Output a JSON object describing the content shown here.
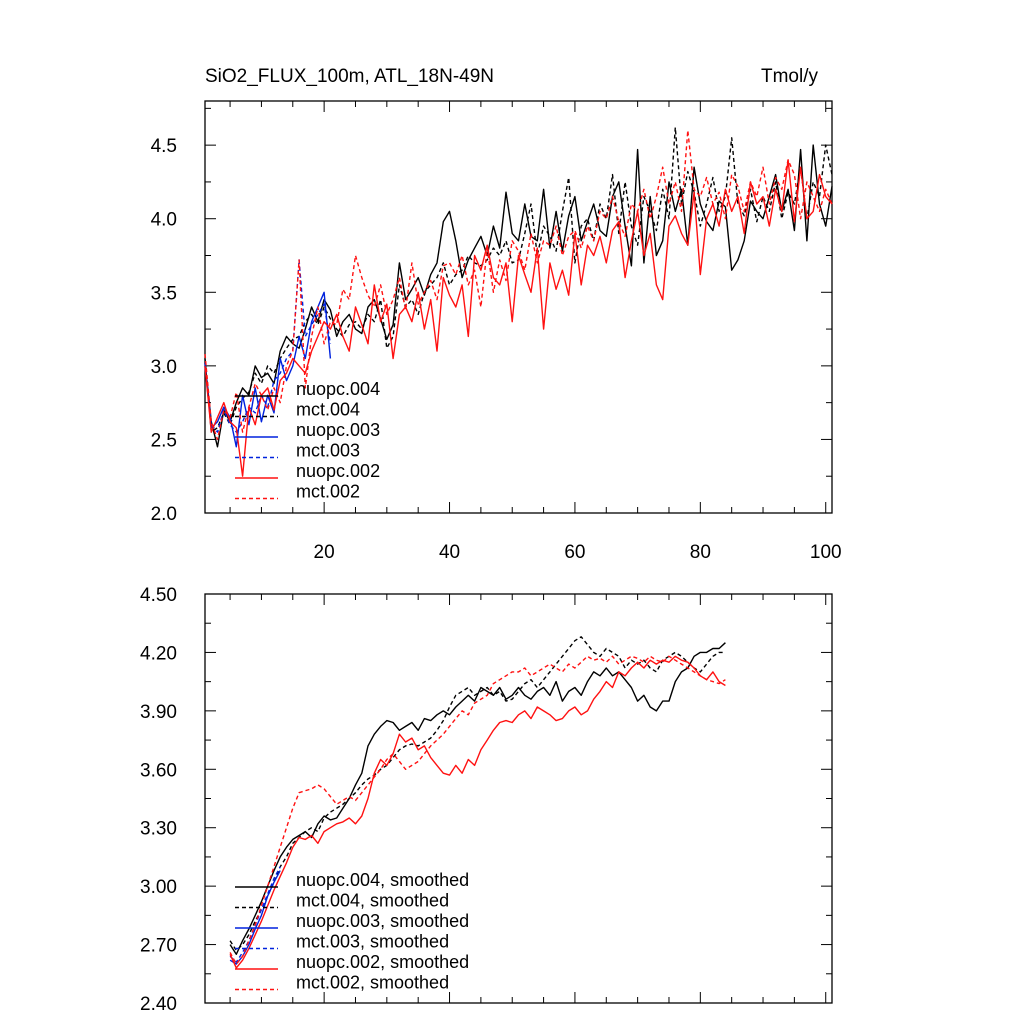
{
  "chart_data": [
    {
      "type": "line",
      "title": "SiO2_FLUX_100m, ATL_18N-49N",
      "units": "Tmol/y",
      "xlabel": "",
      "ylabel": "",
      "xlim": [
        1,
        101
      ],
      "ylim": [
        2.0,
        4.8
      ],
      "xticks": [
        20,
        40,
        60,
        80,
        100
      ],
      "yticks": [
        2.0,
        2.5,
        3.0,
        3.5,
        4.0,
        4.5
      ],
      "ytick_labels": [
        "2.0",
        "2.5",
        "3.0",
        "3.5",
        "4.0",
        "4.5"
      ],
      "legend": "bottom-left",
      "series": [
        {
          "name": "nuopc.004",
          "color": "#000000",
          "dash": "solid",
          "x_start": 1,
          "values": [
            3.02,
            2.62,
            2.45,
            2.7,
            2.62,
            2.75,
            2.85,
            2.8,
            3.0,
            2.92,
            2.95,
            2.88,
            3.1,
            3.2,
            3.15,
            3.12,
            3.25,
            3.4,
            3.3,
            3.45,
            3.38,
            3.2,
            3.3,
            3.35,
            3.25,
            3.22,
            3.4,
            3.45,
            3.32,
            3.18,
            3.28,
            3.7,
            3.45,
            3.52,
            3.6,
            3.48,
            3.62,
            3.7,
            3.98,
            4.05,
            3.85,
            3.6,
            3.72,
            3.8,
            3.88,
            3.75,
            3.95,
            3.8,
            4.18,
            3.9,
            3.85,
            4.1,
            3.88,
            3.85,
            4.2,
            3.8,
            4.05,
            3.78,
            4.02,
            4.15,
            3.85,
            3.98,
            4.1,
            3.92,
            3.88,
            4.15,
            4.25,
            3.95,
            3.68,
            4.47,
            3.7,
            4.15,
            3.75,
            3.85,
            4.25,
            4.05,
            4.2,
            3.82,
            4.35,
            4.1,
            3.98,
            3.92,
            4.12,
            4.08,
            3.65,
            3.72,
            3.85,
            4.12,
            4.05,
            4.0,
            4.15,
            4.3,
            4.05,
            4.2,
            3.92,
            4.47,
            3.85,
            4.5,
            4.1,
            3.95,
            4.22
          ]
        },
        {
          "name": "mct.004",
          "color": "#000000",
          "dash": "dash",
          "x_start": 1,
          "values": [
            3.05,
            2.55,
            2.58,
            2.68,
            2.6,
            2.72,
            2.78,
            2.82,
            2.95,
            2.88,
            3.0,
            2.95,
            3.05,
            3.12,
            3.18,
            3.2,
            3.3,
            3.35,
            3.28,
            3.4,
            3.32,
            3.25,
            3.2,
            3.28,
            3.3,
            3.25,
            3.35,
            3.3,
            3.45,
            3.12,
            3.2,
            3.55,
            3.4,
            3.45,
            3.35,
            3.5,
            3.55,
            3.6,
            3.7,
            3.55,
            3.62,
            3.65,
            3.75,
            3.7,
            3.68,
            3.72,
            3.8,
            3.75,
            3.85,
            3.7,
            3.72,
            3.9,
            4.1,
            3.75,
            3.95,
            3.88,
            3.78,
            4.05,
            4.28,
            3.7,
            3.95,
            4.0,
            3.85,
            4.1,
            4.0,
            4.3,
            3.9,
            4.25,
            3.95,
            3.82,
            4.15,
            4.05,
            3.92,
            4.2,
            4.0,
            4.62,
            4.1,
            4.32,
            4.18,
            3.95,
            4.1,
            4.28,
            4.05,
            4.15,
            4.55,
            4.1,
            4.02,
            4.2,
            3.98,
            4.15,
            4.05,
            4.25,
            4.0,
            4.18,
            4.1,
            4.35,
            4.0,
            4.25,
            4.15,
            4.5,
            4.3
          ]
        },
        {
          "name": "nuopc.003",
          "color": "#0022dd",
          "dash": "solid",
          "x_start": 1,
          "values": [
            3.0,
            2.58,
            2.62,
            2.72,
            2.65,
            2.45,
            2.8,
            2.6,
            2.85,
            2.62,
            2.8,
            2.68,
            3.05,
            2.9,
            3.0,
            3.2,
            3.05,
            3.3,
            3.4,
            3.5,
            3.05
          ]
        },
        {
          "name": "mct.003",
          "color": "#0022dd",
          "dash": "dash",
          "x_start": 1,
          "values": [
            3.02,
            2.6,
            2.55,
            2.7,
            2.6,
            2.55,
            2.62,
            2.72,
            2.68,
            2.8,
            2.72,
            2.9,
            2.95,
            3.05,
            3.1,
            3.72,
            3.2,
            3.28,
            3.35,
            3.42,
            3.15
          ]
        },
        {
          "name": "nuopc.002",
          "color": "#ff1111",
          "dash": "solid",
          "x_start": 1,
          "values": [
            3.0,
            2.55,
            2.65,
            2.75,
            2.62,
            2.58,
            2.25,
            2.72,
            2.6,
            2.8,
            2.85,
            2.7,
            2.9,
            2.95,
            3.05,
            3.0,
            2.95,
            3.1,
            3.2,
            3.3,
            3.25,
            3.35,
            3.2,
            3.1,
            3.4,
            3.28,
            3.15,
            3.55,
            3.3,
            3.42,
            3.05,
            3.35,
            3.4,
            3.3,
            3.5,
            3.25,
            3.45,
            3.1,
            3.6,
            3.48,
            3.4,
            3.55,
            3.2,
            3.75,
            3.65,
            3.82,
            3.6,
            3.55,
            3.7,
            3.3,
            3.75,
            3.62,
            3.5,
            3.8,
            3.25,
            3.7,
            3.52,
            3.65,
            3.48,
            3.9,
            3.55,
            3.82,
            3.75,
            3.88,
            3.7,
            3.92,
            3.98,
            3.6,
            3.85,
            4.05,
            3.75,
            3.9,
            3.55,
            3.45,
            3.95,
            4.02,
            3.9,
            3.82,
            4.18,
            3.62,
            4.0,
            4.1,
            3.95,
            4.2,
            4.05,
            4.15,
            3.9,
            4.25,
            4.1,
            4.15,
            3.95,
            4.2,
            4.05,
            4.4,
            3.98,
            4.35,
            4.0,
            4.05,
            4.3,
            4.15,
            4.1
          ]
        },
        {
          "name": "mct.002",
          "color": "#ff1111",
          "dash": "dash",
          "x_start": 1,
          "values": [
            3.08,
            2.62,
            2.5,
            2.7,
            2.65,
            2.82,
            2.55,
            2.72,
            2.88,
            2.8,
            2.7,
            2.85,
            2.75,
            3.0,
            3.1,
            3.72,
            2.85,
            3.2,
            3.4,
            3.15,
            3.3,
            3.28,
            3.52,
            3.45,
            3.75,
            3.6,
            3.48,
            3.4,
            3.55,
            3.35,
            3.45,
            3.6,
            3.38,
            3.7,
            3.42,
            3.5,
            3.58,
            3.45,
            3.68,
            3.7,
            3.62,
            3.75,
            3.55,
            3.65,
            3.4,
            3.8,
            3.5,
            3.72,
            3.58,
            3.85,
            3.78,
            3.65,
            3.9,
            3.7,
            3.85,
            3.82,
            3.95,
            3.75,
            3.88,
            3.92,
            3.8,
            3.95,
            3.85,
            4.05,
            4.0,
            4.15,
            3.98,
            3.88,
            4.1,
            4.05,
            4.2,
            4.0,
            4.15,
            4.35,
            4.1,
            4.25,
            4.05,
            4.6,
            4.2,
            4.15,
            4.28,
            4.1,
            4.18,
            4.0,
            4.3,
            4.22,
            4.05,
            4.25,
            4.15,
            4.35,
            4.1,
            4.28,
            4.2,
            4.4,
            4.3,
            4.0,
            4.25,
            4.15,
            4.05,
            4.2,
            4.1
          ]
        }
      ]
    },
    {
      "type": "line",
      "title": "",
      "xlabel": "",
      "ylabel": "",
      "xlim": [
        1,
        101
      ],
      "ylim": [
        2.4,
        4.5
      ],
      "xticks": [
        20,
        40,
        60,
        80,
        100
      ],
      "show_xtick_labels": false,
      "yticks": [
        2.4,
        2.7,
        3.0,
        3.3,
        3.6,
        3.9,
        4.2,
        4.5
      ],
      "ytick_labels": [
        "2.40",
        "2.70",
        "3.00",
        "3.30",
        "3.60",
        "3.90",
        "4.20",
        "4.50"
      ],
      "legend": "bottom-left",
      "series": [
        {
          "name": "nuopc.004, smoothed",
          "color": "#000000",
          "dash": "solid",
          "x_start": 5,
          "values": [
            2.7,
            2.65,
            2.72,
            2.78,
            2.85,
            2.92,
            3.0,
            3.08,
            3.15,
            3.2,
            3.24,
            3.26,
            3.28,
            3.25,
            3.32,
            3.36,
            3.34,
            3.35,
            3.4,
            3.45,
            3.52,
            3.58,
            3.72,
            3.78,
            3.82,
            3.85,
            3.84,
            3.8,
            3.82,
            3.84,
            3.8,
            3.86,
            3.85,
            3.88,
            3.9,
            3.88,
            3.92,
            3.95,
            3.98,
            3.95,
            4.02,
            4.0,
            3.98,
            4.02,
            3.96,
            3.98,
            4.02,
            3.98,
            3.96,
            4.0,
            4.02,
            3.98,
            4.05,
            3.95,
            4.0,
            4.02,
            3.98,
            4.05,
            4.1,
            4.08,
            4.12,
            4.08,
            4.1,
            4.06,
            4.02,
            3.95,
            3.98,
            3.92,
            3.9,
            3.95,
            3.95,
            4.05,
            4.1,
            4.12,
            4.18,
            4.2,
            4.2,
            4.22,
            4.22,
            4.25
          ]
        },
        {
          "name": "mct.004, smoothed",
          "color": "#000000",
          "dash": "dash",
          "x_start": 5,
          "values": [
            2.72,
            2.67,
            2.7,
            2.75,
            2.82,
            2.88,
            2.95,
            3.02,
            3.1,
            3.15,
            3.22,
            3.25,
            3.28,
            3.3,
            3.28,
            3.35,
            3.38,
            3.4,
            3.42,
            3.45,
            3.48,
            3.52,
            3.55,
            3.57,
            3.6,
            3.62,
            3.66,
            3.7,
            3.72,
            3.73,
            3.72,
            3.74,
            3.76,
            3.8,
            3.85,
            3.92,
            3.98,
            4.0,
            4.02,
            3.98,
            4.0,
            4.02,
            3.98,
            4.0,
            3.95,
            3.96,
            4.0,
            4.04,
            4.06,
            4.02,
            4.06,
            4.1,
            4.14,
            4.18,
            4.22,
            4.26,
            4.28,
            4.24,
            4.2,
            4.18,
            4.22,
            4.2,
            4.18,
            4.12,
            4.16,
            4.14,
            4.16,
            4.12,
            4.1,
            4.16,
            4.18,
            4.2,
            4.18,
            4.15,
            4.12,
            4.1,
            4.14,
            4.18,
            4.2,
            4.2
          ]
        },
        {
          "name": "nuopc.003, smoothed",
          "color": "#0022dd",
          "dash": "solid",
          "x_start": 5,
          "values": [
            2.62,
            2.6,
            2.64,
            2.7,
            2.78,
            2.85,
            2.95,
            3.02,
            3.08
          ]
        },
        {
          "name": "mct.003, smoothed",
          "color": "#0022dd",
          "dash": "dash",
          "x_start": 5,
          "values": [
            2.64,
            2.61,
            2.66,
            2.72,
            2.8,
            2.88,
            2.96,
            3.04,
            3.1
          ]
        },
        {
          "name": "nuopc.002, smoothed",
          "color": "#ff1111",
          "dash": "solid",
          "x_start": 5,
          "values": [
            2.65,
            2.58,
            2.62,
            2.68,
            2.75,
            2.82,
            2.9,
            2.98,
            3.05,
            3.12,
            3.2,
            3.25,
            3.24,
            3.26,
            3.22,
            3.28,
            3.3,
            3.32,
            3.33,
            3.35,
            3.32,
            3.36,
            3.45,
            3.58,
            3.65,
            3.62,
            3.68,
            3.78,
            3.74,
            3.76,
            3.7,
            3.72,
            3.66,
            3.62,
            3.58,
            3.57,
            3.62,
            3.58,
            3.65,
            3.62,
            3.7,
            3.75,
            3.8,
            3.84,
            3.85,
            3.84,
            3.88,
            3.9,
            3.86,
            3.92,
            3.9,
            3.88,
            3.85,
            3.86,
            3.9,
            3.92,
            3.88,
            3.9,
            3.96,
            4.0,
            4.05,
            4.02,
            4.1,
            4.08,
            4.12,
            4.15,
            4.12,
            4.16,
            4.14,
            4.16,
            4.15,
            4.18,
            4.16,
            4.15,
            4.12,
            4.08,
            4.06,
            4.1,
            4.05,
            4.03
          ]
        },
        {
          "name": "mct.002, smoothed",
          "color": "#ff1111",
          "dash": "dash",
          "x_start": 5,
          "values": [
            2.66,
            2.6,
            2.64,
            2.72,
            2.8,
            2.9,
            3.0,
            3.1,
            3.2,
            3.3,
            3.4,
            3.48,
            3.49,
            3.5,
            3.52,
            3.5,
            3.46,
            3.42,
            3.44,
            3.46,
            3.44,
            3.48,
            3.52,
            3.56,
            3.6,
            3.65,
            3.68,
            3.64,
            3.6,
            3.62,
            3.64,
            3.68,
            3.72,
            3.75,
            3.78,
            3.82,
            3.86,
            3.9,
            3.88,
            3.94,
            3.96,
            3.98,
            4.04,
            4.06,
            4.08,
            4.1,
            4.1,
            4.12,
            4.08,
            4.1,
            4.12,
            4.14,
            4.12,
            4.1,
            4.14,
            4.12,
            4.15,
            4.18,
            4.16,
            4.17,
            4.15,
            4.18,
            4.14,
            4.16,
            4.18,
            4.17,
            4.15,
            4.18,
            4.16,
            4.15,
            4.18,
            4.16,
            4.14,
            4.12,
            4.1,
            4.08,
            4.06,
            4.05,
            4.04,
            4.06
          ]
        }
      ]
    }
  ]
}
